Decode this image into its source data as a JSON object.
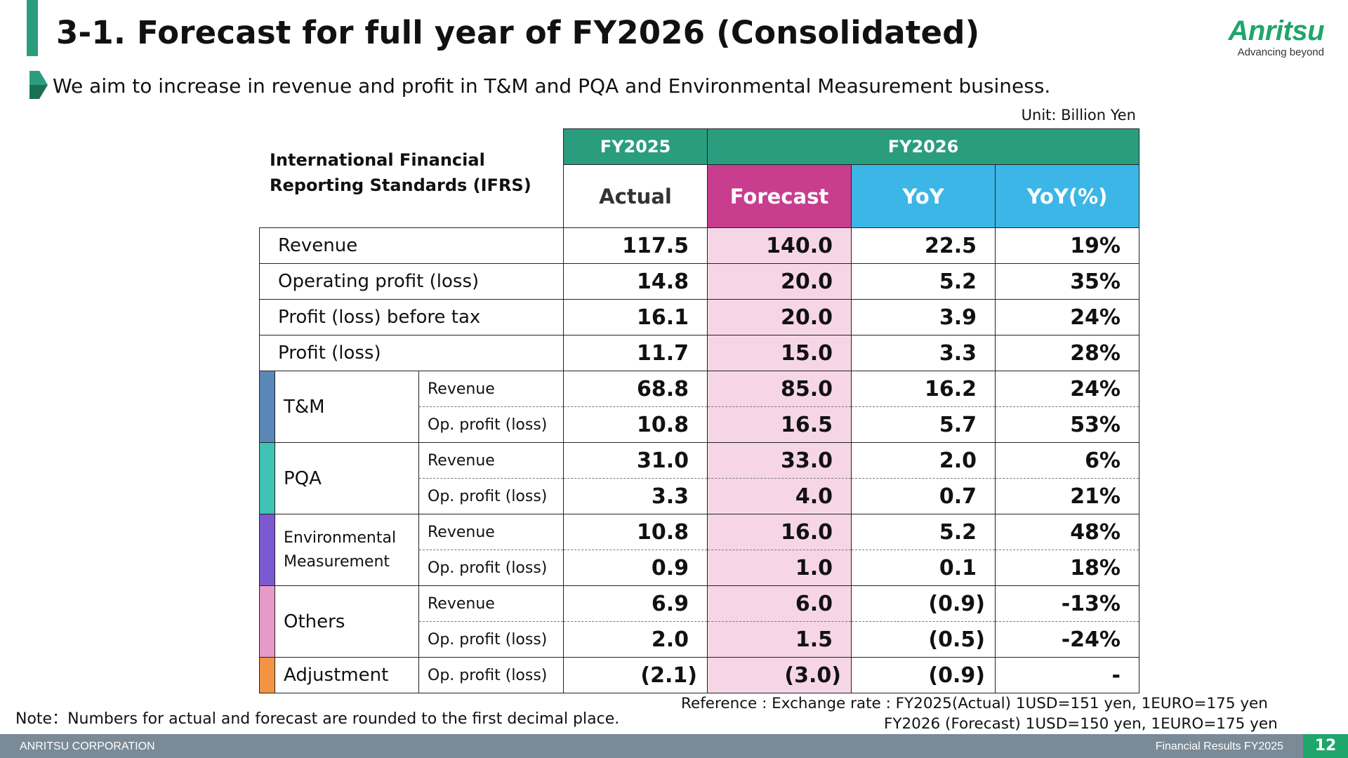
{
  "header": {
    "title": "3-1. Forecast for full year of FY2026  (Consolidated)",
    "subtitle": "We aim to increase in revenue and profit in T&M and PQA and Environmental Measurement business.",
    "logo_text": "Anritsu",
    "logo_tagline": "Advancing beyond",
    "brand_color": "#1fa66a",
    "accent_color": "#2a9d7f"
  },
  "unit": "Unit: Billion Yen",
  "table": {
    "corner_label_line1": "International Financial",
    "corner_label_line2": "Reporting Standards (IFRS)",
    "year_headers": {
      "fy2025": "FY2025",
      "fy2026": "FY2026"
    },
    "column_headers": {
      "actual": "Actual",
      "forecast": "Forecast",
      "yoy": "YoY",
      "yoy_pct": "YoY(%)"
    },
    "main_rows": [
      {
        "label": "Revenue",
        "actual": "117.5",
        "forecast": "140.0",
        "yoy": "22.5",
        "yoy_pct": "19%"
      },
      {
        "label": "Operating profit (loss)",
        "actual": "14.8",
        "forecast": "20.0",
        "yoy": "5.2",
        "yoy_pct": "35%"
      },
      {
        "label": "Profit (loss) before tax",
        "actual": "16.1",
        "forecast": "20.0",
        "yoy": "3.9",
        "yoy_pct": "24%"
      },
      {
        "label": "Profit (loss)",
        "actual": "11.7",
        "forecast": "15.0",
        "yoy": "3.3",
        "yoy_pct": "28%"
      }
    ],
    "segments": [
      {
        "name": "T&M",
        "color": "#5b87b8",
        "rows": [
          {
            "label": "Revenue",
            "actual": "68.8",
            "forecast": "85.0",
            "yoy": "16.2",
            "yoy_pct": "24%"
          },
          {
            "label": "Op. profit (loss)",
            "actual": "10.8",
            "forecast": "16.5",
            "yoy": "5.7",
            "yoy_pct": "53%"
          }
        ]
      },
      {
        "name": "PQA",
        "color": "#3ec2b4",
        "rows": [
          {
            "label": "Revenue",
            "actual": "31.0",
            "forecast": "33.0",
            "yoy": "2.0",
            "yoy_pct": "6%"
          },
          {
            "label": "Op. profit (loss)",
            "actual": "3.3",
            "forecast": "4.0",
            "yoy": "0.7",
            "yoy_pct": "21%"
          }
        ]
      },
      {
        "name_line1": "Environmental",
        "name_line2": "Measurement",
        "color": "#7b59d1",
        "rows": [
          {
            "label": "Revenue",
            "actual": "10.8",
            "forecast": "16.0",
            "yoy": "5.2",
            "yoy_pct": "48%"
          },
          {
            "label": "Op. profit (loss)",
            "actual": "0.9",
            "forecast": "1.0",
            "yoy": "0.1",
            "yoy_pct": "18%"
          }
        ]
      },
      {
        "name": "Others",
        "color": "#e79ac8",
        "rows": [
          {
            "label": "Revenue",
            "actual": "6.9",
            "forecast": "6.0",
            "yoy": "(0.9)",
            "yoy_pct": "-13%"
          },
          {
            "label": "Op. profit (loss)",
            "actual": "2.0",
            "forecast": "1.5",
            "yoy": "(0.5)",
            "yoy_pct": "-24%"
          }
        ]
      }
    ],
    "adjustment": {
      "name": "Adjustment",
      "color": "#f29443",
      "label": "Op. profit (loss)",
      "actual": "(2.1)",
      "forecast": "(3.0)",
      "yoy": "(0.9)",
      "yoy_pct": "-"
    }
  },
  "note": "Note：Numbers for actual and forecast are rounded to the first decimal place.",
  "reference": {
    "line1": "Reference : Exchange rate : FY2025(Actual)      1USD=151 yen, 1EURO=175 yen",
    "line2": "FY2026 (Forecast) 1USD=150 yen, 1EURO=175 yen"
  },
  "footer": {
    "company": "ANRITSU CORPORATION",
    "doc_title": "Financial Results FY2025",
    "page_number": "12"
  }
}
